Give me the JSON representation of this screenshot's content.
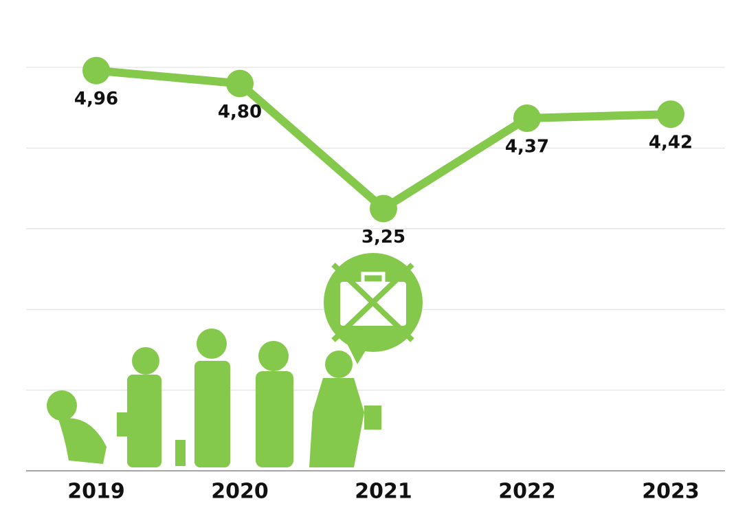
{
  "chart_data": {
    "type": "line",
    "categories": [
      "2019",
      "2020",
      "2021",
      "2022",
      "2023"
    ],
    "values": [
      4.96,
      4.8,
      3.25,
      4.37,
      4.42
    ],
    "value_labels": [
      "4,96",
      "4,80",
      "3,25",
      "4,37",
      "4,42"
    ],
    "color": "#84c94b",
    "ylim": [
      0,
      5
    ],
    "yticks": [
      0,
      1,
      2,
      3,
      4,
      5
    ],
    "grid": true
  }
}
